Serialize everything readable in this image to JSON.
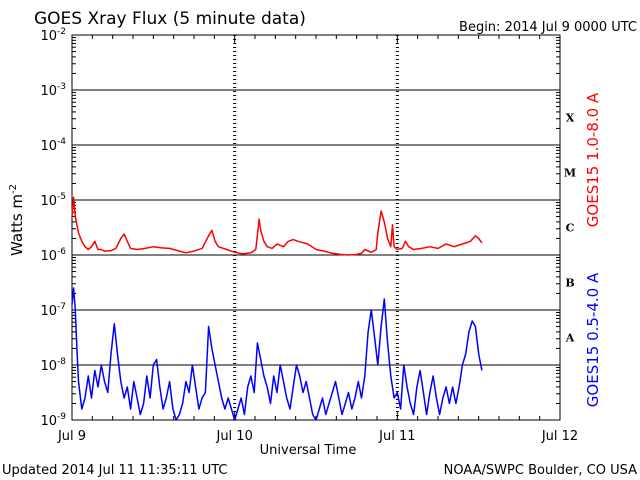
{
  "chart_data": {
    "type": "line",
    "title": "GOES Xray Flux (5 minute data)",
    "begin_label": "Begin:  2014 Jul 9 0000 UTC",
    "xlabel": "Universal Time",
    "ylabel": "Watts m",
    "ylabel_superscript": "-2",
    "x_ticks": [
      "Jul 9",
      "Jul 10",
      "Jul 11",
      "Jul 12"
    ],
    "xlim_days": [
      0,
      3
    ],
    "ylim_exponent": [
      -9,
      -2
    ],
    "y_scale": "log",
    "y_ticks": [
      {
        "base": "10",
        "exp": "-2"
      },
      {
        "base": "10",
        "exp": "-3"
      },
      {
        "base": "10",
        "exp": "-4"
      },
      {
        "base": "10",
        "exp": "-5"
      },
      {
        "base": "10",
        "exp": "-6"
      },
      {
        "base": "10",
        "exp": "-7"
      },
      {
        "base": "10",
        "exp": "-8"
      },
      {
        "base": "10",
        "exp": "-9"
      }
    ],
    "flare_classes": [
      {
        "label": "X",
        "log_low": -4
      },
      {
        "label": "M",
        "log_low": -5
      },
      {
        "label": "C",
        "log_low": -6
      },
      {
        "label": "B",
        "log_low": -7
      },
      {
        "label": "A",
        "log_low": -8
      }
    ],
    "gridlines_log": [
      -3,
      -4,
      -5,
      -6,
      -7,
      -8
    ],
    "day_dividers": [
      1,
      2
    ],
    "series": [
      {
        "name": "GOES15 1.0-8.0 A",
        "color": "#ff0000",
        "points": [
          [
            0.0,
            -5.3
          ],
          [
            0.01,
            -4.95
          ],
          [
            0.02,
            -5.3
          ],
          [
            0.04,
            -5.6
          ],
          [
            0.06,
            -5.75
          ],
          [
            0.08,
            -5.85
          ],
          [
            0.1,
            -5.9
          ],
          [
            0.12,
            -5.85
          ],
          [
            0.14,
            -5.75
          ],
          [
            0.16,
            -5.9
          ],
          [
            0.18,
            -5.9
          ],
          [
            0.2,
            -5.93
          ],
          [
            0.24,
            -5.92
          ],
          [
            0.27,
            -5.88
          ],
          [
            0.3,
            -5.7
          ],
          [
            0.32,
            -5.62
          ],
          [
            0.34,
            -5.75
          ],
          [
            0.36,
            -5.88
          ],
          [
            0.4,
            -5.9
          ],
          [
            0.45,
            -5.88
          ],
          [
            0.5,
            -5.85
          ],
          [
            0.55,
            -5.87
          ],
          [
            0.6,
            -5.88
          ],
          [
            0.65,
            -5.92
          ],
          [
            0.7,
            -5.96
          ],
          [
            0.75,
            -5.93
          ],
          [
            0.8,
            -5.88
          ],
          [
            0.84,
            -5.65
          ],
          [
            0.86,
            -5.55
          ],
          [
            0.88,
            -5.75
          ],
          [
            0.9,
            -5.85
          ],
          [
            0.95,
            -5.9
          ],
          [
            1.0,
            -5.95
          ],
          [
            1.05,
            -5.98
          ],
          [
            1.1,
            -5.96
          ],
          [
            1.13,
            -5.9
          ],
          [
            1.15,
            -5.35
          ],
          [
            1.16,
            -5.55
          ],
          [
            1.18,
            -5.75
          ],
          [
            1.2,
            -5.85
          ],
          [
            1.23,
            -5.88
          ],
          [
            1.26,
            -5.8
          ],
          [
            1.3,
            -5.85
          ],
          [
            1.33,
            -5.75
          ],
          [
            1.36,
            -5.72
          ],
          [
            1.4,
            -5.76
          ],
          [
            1.45,
            -5.8
          ],
          [
            1.5,
            -5.9
          ],
          [
            1.55,
            -5.93
          ],
          [
            1.6,
            -5.97
          ],
          [
            1.65,
            -5.99
          ],
          [
            1.7,
            -6.0
          ],
          [
            1.75,
            -5.99
          ],
          [
            1.78,
            -5.97
          ],
          [
            1.8,
            -5.9
          ],
          [
            1.84,
            -5.95
          ],
          [
            1.87,
            -5.9
          ],
          [
            1.88,
            -5.6
          ],
          [
            1.9,
            -5.2
          ],
          [
            1.92,
            -5.4
          ],
          [
            1.94,
            -5.7
          ],
          [
            1.96,
            -5.85
          ],
          [
            1.97,
            -5.45
          ],
          [
            1.98,
            -5.85
          ],
          [
            2.0,
            -5.9
          ],
          [
            2.03,
            -5.88
          ],
          [
            2.05,
            -5.75
          ],
          [
            2.07,
            -5.85
          ],
          [
            2.1,
            -5.9
          ],
          [
            2.15,
            -5.88
          ],
          [
            2.2,
            -5.85
          ],
          [
            2.25,
            -5.88
          ],
          [
            2.3,
            -5.8
          ],
          [
            2.35,
            -5.85
          ],
          [
            2.4,
            -5.8
          ],
          [
            2.45,
            -5.75
          ],
          [
            2.48,
            -5.65
          ],
          [
            2.5,
            -5.7
          ],
          [
            2.52,
            -5.78
          ]
        ]
      },
      {
        "name": "GOES15 0.5-4.0 A",
        "color": "#0000ff",
        "points": [
          [
            0.0,
            -6.9
          ],
          [
            0.01,
            -6.6
          ],
          [
            0.02,
            -7.0
          ],
          [
            0.03,
            -7.7
          ],
          [
            0.04,
            -8.3
          ],
          [
            0.06,
            -8.8
          ],
          [
            0.08,
            -8.6
          ],
          [
            0.1,
            -8.2
          ],
          [
            0.12,
            -8.6
          ],
          [
            0.14,
            -8.1
          ],
          [
            0.16,
            -8.4
          ],
          [
            0.18,
            -8.0
          ],
          [
            0.2,
            -8.3
          ],
          [
            0.22,
            -8.5
          ],
          [
            0.24,
            -7.8
          ],
          [
            0.26,
            -7.25
          ],
          [
            0.28,
            -7.8
          ],
          [
            0.3,
            -8.3
          ],
          [
            0.32,
            -8.6
          ],
          [
            0.34,
            -8.4
          ],
          [
            0.36,
            -8.8
          ],
          [
            0.38,
            -8.3
          ],
          [
            0.4,
            -8.6
          ],
          [
            0.42,
            -8.9
          ],
          [
            0.44,
            -8.7
          ],
          [
            0.46,
            -8.2
          ],
          [
            0.48,
            -8.6
          ],
          [
            0.5,
            -8.0
          ],
          [
            0.52,
            -7.9
          ],
          [
            0.54,
            -8.4
          ],
          [
            0.56,
            -8.8
          ],
          [
            0.58,
            -8.6
          ],
          [
            0.6,
            -8.3
          ],
          [
            0.62,
            -8.8
          ],
          [
            0.64,
            -9.0
          ],
          [
            0.66,
            -8.9
          ],
          [
            0.68,
            -8.7
          ],
          [
            0.7,
            -8.3
          ],
          [
            0.72,
            -8.5
          ],
          [
            0.74,
            -8.0
          ],
          [
            0.76,
            -8.4
          ],
          [
            0.78,
            -8.8
          ],
          [
            0.8,
            -8.6
          ],
          [
            0.82,
            -8.5
          ],
          [
            0.84,
            -7.3
          ],
          [
            0.86,
            -7.7
          ],
          [
            0.88,
            -8.0
          ],
          [
            0.9,
            -8.3
          ],
          [
            0.92,
            -8.6
          ],
          [
            0.94,
            -8.8
          ],
          [
            0.96,
            -8.6
          ],
          [
            0.98,
            -8.8
          ],
          [
            1.0,
            -9.0
          ],
          [
            1.02,
            -8.8
          ],
          [
            1.04,
            -8.6
          ],
          [
            1.06,
            -8.9
          ],
          [
            1.08,
            -8.4
          ],
          [
            1.1,
            -8.2
          ],
          [
            1.12,
            -8.5
          ],
          [
            1.14,
            -7.6
          ],
          [
            1.16,
            -7.9
          ],
          [
            1.18,
            -8.2
          ],
          [
            1.2,
            -8.4
          ],
          [
            1.22,
            -8.7
          ],
          [
            1.24,
            -8.2
          ],
          [
            1.26,
            -8.5
          ],
          [
            1.28,
            -8.0
          ],
          [
            1.3,
            -8.3
          ],
          [
            1.32,
            -8.6
          ],
          [
            1.34,
            -8.8
          ],
          [
            1.36,
            -8.4
          ],
          [
            1.38,
            -8.0
          ],
          [
            1.4,
            -8.2
          ],
          [
            1.42,
            -8.5
          ],
          [
            1.44,
            -8.3
          ],
          [
            1.46,
            -8.6
          ],
          [
            1.48,
            -8.9
          ],
          [
            1.5,
            -9.0
          ],
          [
            1.52,
            -8.8
          ],
          [
            1.54,
            -8.6
          ],
          [
            1.56,
            -8.9
          ],
          [
            1.58,
            -8.7
          ],
          [
            1.6,
            -8.5
          ],
          [
            1.62,
            -8.3
          ],
          [
            1.64,
            -8.6
          ],
          [
            1.66,
            -8.9
          ],
          [
            1.68,
            -8.7
          ],
          [
            1.7,
            -8.5
          ],
          [
            1.72,
            -8.8
          ],
          [
            1.74,
            -8.6
          ],
          [
            1.76,
            -8.3
          ],
          [
            1.78,
            -8.6
          ],
          [
            1.8,
            -8.2
          ],
          [
            1.82,
            -7.4
          ],
          [
            1.84,
            -7.0
          ],
          [
            1.86,
            -7.5
          ],
          [
            1.88,
            -8.0
          ],
          [
            1.9,
            -7.3
          ],
          [
            1.92,
            -6.8
          ],
          [
            1.94,
            -7.6
          ],
          [
            1.96,
            -8.2
          ],
          [
            1.98,
            -8.6
          ],
          [
            2.0,
            -8.5
          ],
          [
            2.02,
            -8.8
          ],
          [
            2.04,
            -8.0
          ],
          [
            2.06,
            -8.4
          ],
          [
            2.08,
            -8.7
          ],
          [
            2.1,
            -8.9
          ],
          [
            2.12,
            -8.4
          ],
          [
            2.14,
            -8.1
          ],
          [
            2.16,
            -8.5
          ],
          [
            2.18,
            -8.9
          ],
          [
            2.2,
            -8.5
          ],
          [
            2.22,
            -8.2
          ],
          [
            2.24,
            -8.6
          ],
          [
            2.26,
            -8.9
          ],
          [
            2.28,
            -8.6
          ],
          [
            2.3,
            -8.4
          ],
          [
            2.32,
            -8.7
          ],
          [
            2.34,
            -8.4
          ],
          [
            2.36,
            -8.7
          ],
          [
            2.38,
            -8.4
          ],
          [
            2.4,
            -8.0
          ],
          [
            2.42,
            -7.8
          ],
          [
            2.44,
            -7.4
          ],
          [
            2.46,
            -7.2
          ],
          [
            2.48,
            -7.3
          ],
          [
            2.5,
            -7.8
          ],
          [
            2.52,
            -8.1
          ]
        ]
      }
    ],
    "annotations": {
      "updated": "Updated 2014 Jul 11 11:35:11 UTC",
      "credit": "NOAA/SWPC Boulder, CO USA"
    }
  }
}
